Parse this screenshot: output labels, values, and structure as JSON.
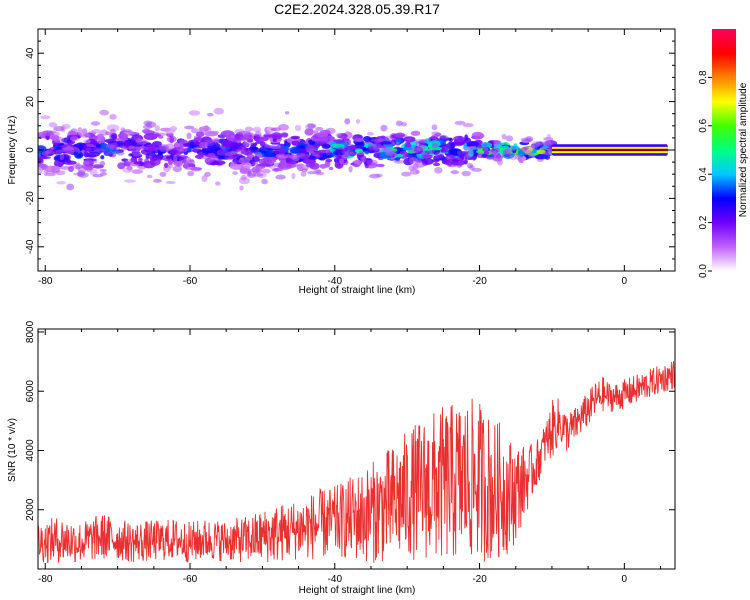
{
  "figure": {
    "title": "C2E2.2024.328.05.39.R17"
  },
  "colorbar": {
    "label": "Normalized spectral amplitude",
    "ticks": [
      "0.0",
      "0.2",
      "0.4",
      "0.6",
      "0.8"
    ],
    "tick_values": [
      0.0,
      0.2,
      0.4,
      0.6,
      0.8
    ],
    "range": [
      0,
      1
    ],
    "colormap": [
      "#ffffff",
      "#c060ff",
      "#7000ff",
      "#0000ff",
      "#00c8ff",
      "#00ff80",
      "#40ff00",
      "#ffff00",
      "#ff8000",
      "#ff0000",
      "#ff0060"
    ]
  },
  "chart_data": [
    {
      "type": "heatmap",
      "xlabel": "Height of straight line (km)",
      "ylabel": "Frequency (Hz)",
      "xlim": [
        -81,
        7
      ],
      "ylim": [
        -50,
        50
      ],
      "xticks": [
        -80,
        -60,
        -40,
        -20,
        0
      ],
      "yticks": [
        -40,
        -20,
        0,
        20,
        40
      ],
      "x_tick_labels": [
        "-80",
        "-60",
        "-40",
        "-20",
        "0"
      ],
      "y_tick_labels": [
        "-40",
        "-20",
        "0",
        "20",
        "40"
      ],
      "grid": false,
      "description_of_content": "broad noisy spectral energy around 0 Hz from -81 to -10 km, narrow high-amplitude band at 0 Hz from -10 to 6 km",
      "ridge": [
        {
          "x_range": [
            -81,
            -40
          ],
          "center_hz": 0,
          "halfwidth_hz": 8,
          "peak_amplitude": 0.3
        },
        {
          "x_range": [
            -40,
            -20
          ],
          "center_hz": 0,
          "halfwidth_hz": 6,
          "peak_amplitude": 0.45
        },
        {
          "x_range": [
            -20,
            -10
          ],
          "center_hz": 0,
          "halfwidth_hz": 3,
          "peak_amplitude": 0.6
        },
        {
          "x_range": [
            -10,
            6
          ],
          "center_hz": 0,
          "halfwidth_hz": 1.5,
          "peak_amplitude": 0.95
        }
      ]
    },
    {
      "type": "line",
      "xlabel": "Height of straight line (km)",
      "ylabel": "SNR (10 * v/v)",
      "xlim": [
        -81,
        7
      ],
      "ylim": [
        0,
        8100
      ],
      "xticks": [
        -80,
        -60,
        -40,
        -20,
        0
      ],
      "yticks": [
        2000,
        4000,
        6000,
        8000
      ],
      "x_tick_labels": [
        "-80",
        "-60",
        "-40",
        "-20",
        "0"
      ],
      "y_tick_labels": [
        "2000",
        "4000",
        "6000",
        "8000"
      ],
      "grid": false,
      "series": [
        {
          "color": "#e83030",
          "x": [
            -81,
            -78,
            -75,
            -72,
            -70,
            -68,
            -65,
            -62,
            -60,
            -58,
            -55,
            -52,
            -50,
            -48,
            -46,
            -44,
            -42,
            -40,
            -38,
            -36,
            -34,
            -32,
            -30,
            -28,
            -26,
            -24,
            -22,
            -20,
            -19,
            -18,
            -17,
            -16,
            -15,
            -14,
            -13,
            -12,
            -11,
            -10,
            -9,
            -8,
            -7,
            -6,
            -5,
            -4,
            -3,
            -2,
            -1,
            0,
            1,
            2,
            3,
            4,
            5,
            6,
            7
          ],
          "y": [
            900,
            1000,
            900,
            1100,
            1000,
            900,
            950,
            1000,
            900,
            1000,
            950,
            1000,
            1100,
            1200,
            1300,
            1400,
            1500,
            1600,
            1700,
            1800,
            2000,
            2200,
            2500,
            2700,
            2800,
            2900,
            3000,
            3000,
            2800,
            2600,
            2700,
            2500,
            2600,
            2900,
            3200,
            3600,
            4200,
            4700,
            5000,
            4600,
            4800,
            5100,
            5400,
            5700,
            5900,
            5800,
            5800,
            5900,
            6000,
            6100,
            6200,
            6300,
            6400,
            6500,
            6600
          ],
          "spread": [
            700,
            800,
            700,
            800,
            700,
            700,
            700,
            700,
            700,
            700,
            700,
            800,
            900,
            1000,
            1000,
            1100,
            1200,
            1200,
            1400,
            1600,
            1800,
            2000,
            2200,
            2400,
            2600,
            2700,
            2800,
            2700,
            2600,
            2400,
            2300,
            2000,
            1700,
            1300,
            1000,
            800,
            700,
            1000,
            800,
            700,
            600,
            600,
            600,
            600,
            600,
            500,
            500,
            500,
            500,
            500,
            500,
            500,
            500,
            500,
            500
          ]
        }
      ]
    }
  ]
}
